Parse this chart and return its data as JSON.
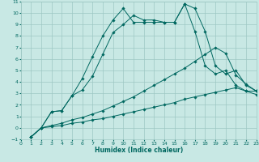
{
  "xlabel": "Humidex (Indice chaleur)",
  "bg_color": "#c8e8e4",
  "grid_color": "#9ec8c4",
  "line_color": "#006860",
  "xlim": [
    0,
    23
  ],
  "ylim": [
    -1,
    11
  ],
  "xticks": [
    0,
    1,
    2,
    3,
    4,
    5,
    6,
    7,
    8,
    9,
    10,
    11,
    12,
    13,
    14,
    15,
    16,
    17,
    18,
    19,
    20,
    21,
    22,
    23
  ],
  "yticks": [
    -1,
    0,
    1,
    2,
    3,
    4,
    5,
    6,
    7,
    8,
    9,
    10,
    11
  ],
  "lines": [
    {
      "x": [
        1,
        2,
        3,
        4,
        5,
        6,
        7,
        8,
        9,
        10,
        11,
        12,
        13,
        14,
        15,
        16,
        17,
        18,
        19,
        20,
        21,
        22,
        23
      ],
      "y": [
        -0.8,
        0.0,
        0.1,
        0.2,
        0.4,
        0.5,
        0.7,
        0.8,
        1.0,
        1.2,
        1.4,
        1.6,
        1.8,
        2.0,
        2.2,
        2.5,
        2.7,
        2.9,
        3.1,
        3.3,
        3.5,
        3.2,
        2.9
      ]
    },
    {
      "x": [
        1,
        2,
        3,
        4,
        5,
        6,
        7,
        8,
        9,
        10,
        11,
        12,
        13,
        14,
        15,
        16,
        17,
        18,
        19,
        20,
        21,
        22,
        23
      ],
      "y": [
        -0.8,
        0.0,
        0.2,
        0.4,
        0.7,
        0.9,
        1.2,
        1.5,
        1.9,
        2.3,
        2.7,
        3.2,
        3.7,
        4.2,
        4.7,
        5.2,
        5.8,
        6.4,
        7.0,
        6.5,
        4.6,
        3.8,
        3.2
      ]
    },
    {
      "x": [
        1,
        2,
        3,
        4,
        5,
        6,
        7,
        8,
        9,
        10,
        11,
        12,
        13,
        14,
        15,
        16,
        17,
        18,
        19,
        20,
        21,
        22,
        23
      ],
      "y": [
        -0.8,
        0.0,
        1.4,
        1.5,
        2.8,
        3.3,
        4.5,
        6.4,
        8.3,
        9.0,
        9.8,
        9.4,
        9.4,
        9.2,
        9.2,
        10.8,
        10.4,
        8.4,
        5.4,
        4.7,
        5.0,
        3.7,
        3.2
      ]
    },
    {
      "x": [
        1,
        2,
        3,
        4,
        5,
        6,
        7,
        8,
        9,
        10,
        11,
        12,
        13,
        14,
        15,
        16,
        17,
        18,
        19,
        20,
        21,
        22,
        23
      ],
      "y": [
        -0.8,
        0.0,
        1.4,
        1.5,
        2.8,
        4.3,
        6.2,
        8.0,
        9.4,
        10.4,
        9.2,
        9.2,
        9.2,
        9.2,
        9.2,
        10.8,
        8.4,
        5.4,
        4.7,
        5.0,
        3.7,
        3.2,
        3.2
      ]
    }
  ]
}
